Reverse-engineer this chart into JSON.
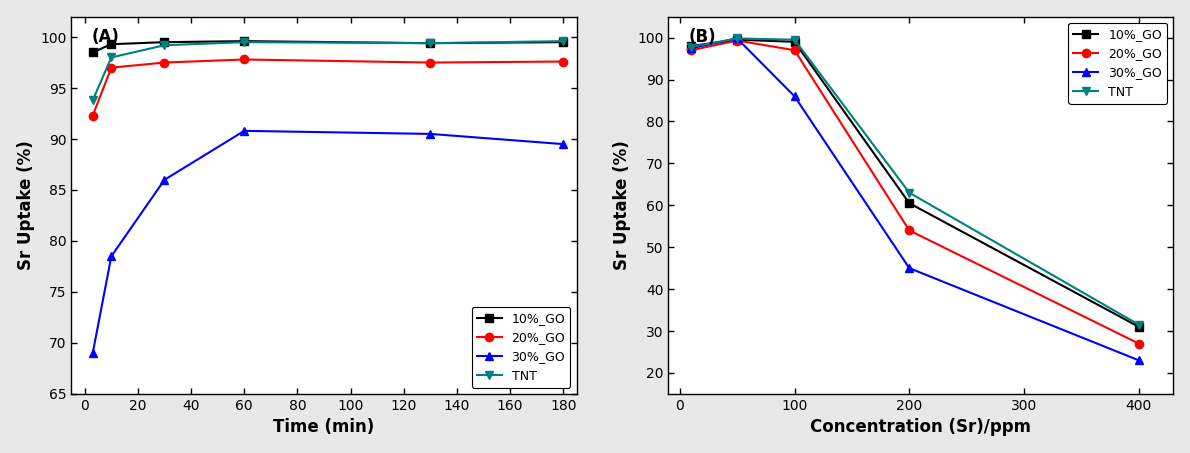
{
  "panel_A": {
    "label": "(A)",
    "xlabel": "Time (min)",
    "ylabel": "Sr Uptake (%)",
    "xlim": [
      -5,
      185
    ],
    "ylim": [
      65,
      102
    ],
    "xticks": [
      0,
      20,
      40,
      60,
      80,
      100,
      120,
      140,
      160,
      180
    ],
    "yticks": [
      65,
      70,
      75,
      80,
      85,
      90,
      95,
      100
    ],
    "series": [
      {
        "label": "10%_GO",
        "color": "#000000",
        "marker": "s",
        "x": [
          3,
          10,
          30,
          60,
          130,
          180
        ],
        "y": [
          98.5,
          99.3,
          99.5,
          99.6,
          99.4,
          99.5
        ]
      },
      {
        "label": "20%_GO",
        "color": "#ff0000",
        "marker": "o",
        "x": [
          3,
          10,
          30,
          60,
          130,
          180
        ],
        "y": [
          92.3,
          97.0,
          97.5,
          97.8,
          97.5,
          97.6
        ]
      },
      {
        "label": "30%_GO",
        "color": "#0000ff",
        "marker": "^",
        "x": [
          3,
          10,
          30,
          60,
          130,
          180
        ],
        "y": [
          69.0,
          78.5,
          86.0,
          90.8,
          90.5,
          89.5
        ]
      },
      {
        "label": "TNT",
        "color": "#008080",
        "marker": "v",
        "x": [
          3,
          10,
          30,
          60,
          130,
          180
        ],
        "y": [
          93.8,
          98.0,
          99.2,
          99.5,
          99.4,
          99.6
        ]
      }
    ],
    "legend_loc": "lower right"
  },
  "panel_B": {
    "label": "(B)",
    "xlabel": "Concentration (Sr)/ppm",
    "ylabel": "Sr Uptake (%)",
    "xlim": [
      -10,
      430
    ],
    "ylim": [
      15,
      105
    ],
    "xticks": [
      0,
      100,
      200,
      300,
      400
    ],
    "yticks": [
      20,
      30,
      40,
      50,
      60,
      70,
      80,
      90,
      100
    ],
    "series": [
      {
        "label": "10%_GO",
        "color": "#000000",
        "marker": "s",
        "x": [
          10,
          50,
          100,
          200,
          400
        ],
        "y": [
          98.0,
          99.5,
          99.0,
          60.5,
          31.0
        ]
      },
      {
        "label": "20%_GO",
        "color": "#ff0000",
        "marker": "o",
        "x": [
          10,
          50,
          100,
          200,
          400
        ],
        "y": [
          97.0,
          99.3,
          97.0,
          54.0,
          27.0
        ]
      },
      {
        "label": "30%_GO",
        "color": "#0000ff",
        "marker": "^",
        "x": [
          10,
          50,
          100,
          200,
          400
        ],
        "y": [
          97.5,
          99.8,
          86.0,
          45.0,
          23.0
        ]
      },
      {
        "label": "TNT",
        "color": "#008080",
        "marker": "v",
        "x": [
          10,
          50,
          100,
          200,
          400
        ],
        "y": [
          97.8,
          99.8,
          99.5,
          63.0,
          31.5
        ]
      }
    ],
    "legend_loc": "upper right"
  },
  "background_color": "#ffffff",
  "figure_facecolor": "#e8e8e8",
  "marker_size": 6,
  "line_width": 1.5
}
